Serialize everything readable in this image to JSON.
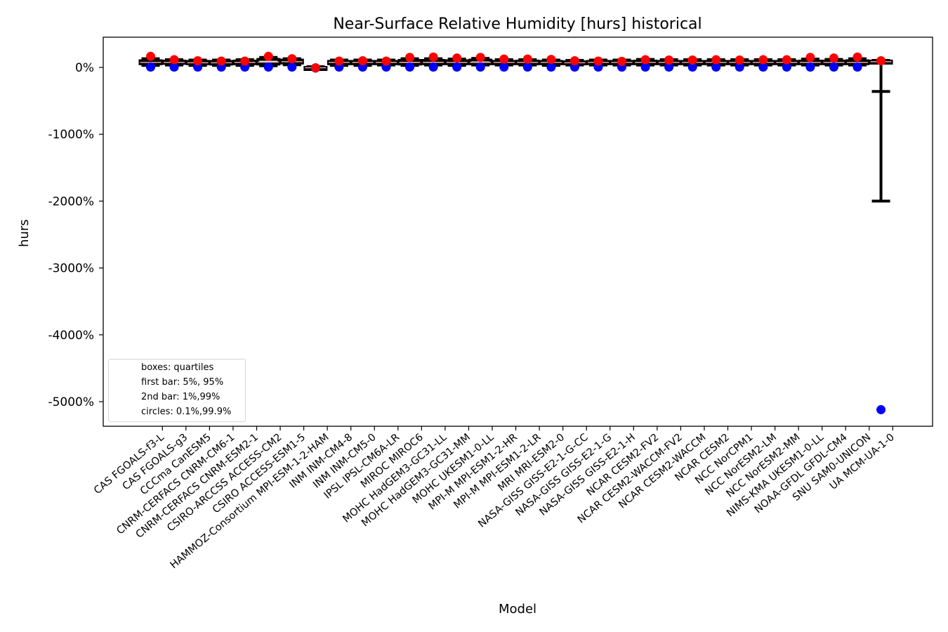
{
  "chart_data": {
    "type": "box",
    "title": "Near-Surface Relative Humidity [hurs] historical",
    "xlabel": "Model",
    "ylabel": "hurs",
    "ylim": [
      -5500,
      450
    ],
    "yticks": [
      0,
      -1000,
      -2000,
      -3000,
      -4000,
      -5000
    ],
    "ytick_labels": [
      "0%",
      "-1000%",
      "-2000%",
      "-3000%",
      "-4000%",
      "-5000%"
    ],
    "grid": false,
    "legend": {
      "placement": "lower-left",
      "entries": [
        "boxes: quartiles",
        "first bar: 5%, 95%",
        "2nd bar: 1%,99%",
        "circles: 0.1%,99.9%"
      ]
    },
    "categories": [
      "CAS FGOALS-f3-L",
      "CAS FGOALS-g3",
      "CCCma CanESM5",
      "CNRM-CERFACS CNRM-CM6-1",
      "CNRM-CERFACS CNRM-ESM2-1",
      "CSIRO-ARCCSS ACCESS-CM2",
      "CSIRO ACCESS-ESM1-5",
      "HAMMOZ-Consortium MPI-ESM-1-2-HAM",
      "INM INM-CM4-8",
      "INM INM-CM5-0",
      "IPSL IPSL-CM6A-LR",
      "MIROC MIROC6",
      "MOHC HadGEM3-GC31-LL",
      "MOHC HadGEM3-GC31-MM",
      "MOHC UKESM1-0-LL",
      "MPI-M MPI-ESM1-2-HR",
      "MPI-M MPI-ESM1-2-LR",
      "MRI MRI-ESM2-0",
      "NASA-GISS GISS-E2-1-G-CC",
      "NASA-GISS GISS-E2-1-G",
      "NASA-GISS GISS-E2-1-H",
      "NCAR CESM2-FV2",
      "NCAR CESM2-WACCM-FV2",
      "NCAR CESM2-WACCM",
      "NCAR CESM2",
      "NCC NorCPM1",
      "NCC NorESM2-LM",
      "NCC NorESM2-MM",
      "NIMS-KMA UKESM1-0-LL",
      "NOAA-GFDL GFDL-CM4",
      "SNU SAM0-UNICON",
      "UA MCM-UA-1-0"
    ],
    "q1": [
      55,
      60,
      55,
      50,
      55,
      50,
      65,
      -10,
      55,
      55,
      55,
      50,
      55,
      55,
      55,
      55,
      55,
      55,
      55,
      55,
      55,
      55,
      55,
      55,
      55,
      55,
      55,
      55,
      55,
      55,
      55,
      72
    ],
    "median": [
      75,
      75,
      70,
      70,
      75,
      80,
      85,
      -5,
      75,
      75,
      75,
      75,
      75,
      75,
      75,
      75,
      75,
      75,
      70,
      75,
      75,
      75,
      75,
      75,
      75,
      75,
      75,
      75,
      75,
      75,
      75,
      85
    ],
    "q3": [
      100,
      95,
      90,
      90,
      95,
      120,
      110,
      0,
      90,
      90,
      90,
      105,
      105,
      100,
      110,
      90,
      95,
      90,
      85,
      90,
      90,
      95,
      90,
      90,
      90,
      90,
      90,
      90,
      95,
      95,
      100,
      95
    ],
    "p5": [
      40,
      45,
      40,
      40,
      40,
      35,
      50,
      -15,
      40,
      40,
      45,
      40,
      45,
      40,
      45,
      45,
      45,
      40,
      45,
      45,
      45,
      45,
      45,
      45,
      45,
      45,
      45,
      45,
      45,
      45,
      45,
      -360
    ],
    "p95": [
      110,
      105,
      100,
      100,
      105,
      135,
      120,
      5,
      100,
      100,
      100,
      115,
      115,
      110,
      120,
      105,
      105,
      100,
      95,
      100,
      100,
      105,
      100,
      100,
      105,
      105,
      105,
      105,
      105,
      110,
      115,
      100
    ],
    "p1": [
      30,
      35,
      30,
      30,
      30,
      25,
      40,
      -20,
      30,
      30,
      35,
      30,
      35,
      30,
      35,
      35,
      35,
      30,
      35,
      35,
      35,
      35,
      35,
      35,
      35,
      35,
      35,
      35,
      35,
      35,
      35,
      -2000
    ],
    "p99": [
      130,
      115,
      110,
      110,
      115,
      150,
      130,
      10,
      110,
      110,
      110,
      130,
      130,
      125,
      135,
      115,
      115,
      110,
      105,
      110,
      110,
      120,
      115,
      115,
      115,
      115,
      115,
      115,
      125,
      120,
      130,
      105
    ],
    "p0_1": [
      5,
      5,
      5,
      5,
      5,
      5,
      5,
      -10,
      5,
      5,
      5,
      5,
      5,
      5,
      5,
      5,
      5,
      5,
      5,
      5,
      5,
      5,
      5,
      5,
      5,
      5,
      5,
      5,
      5,
      5,
      5,
      -5120
    ],
    "p99_9": [
      165,
      115,
      100,
      95,
      95,
      165,
      130,
      -5,
      95,
      100,
      95,
      150,
      155,
      140,
      150,
      125,
      125,
      120,
      100,
      95,
      90,
      115,
      110,
      110,
      115,
      110,
      115,
      115,
      150,
      140,
      155,
      100
    ]
  }
}
